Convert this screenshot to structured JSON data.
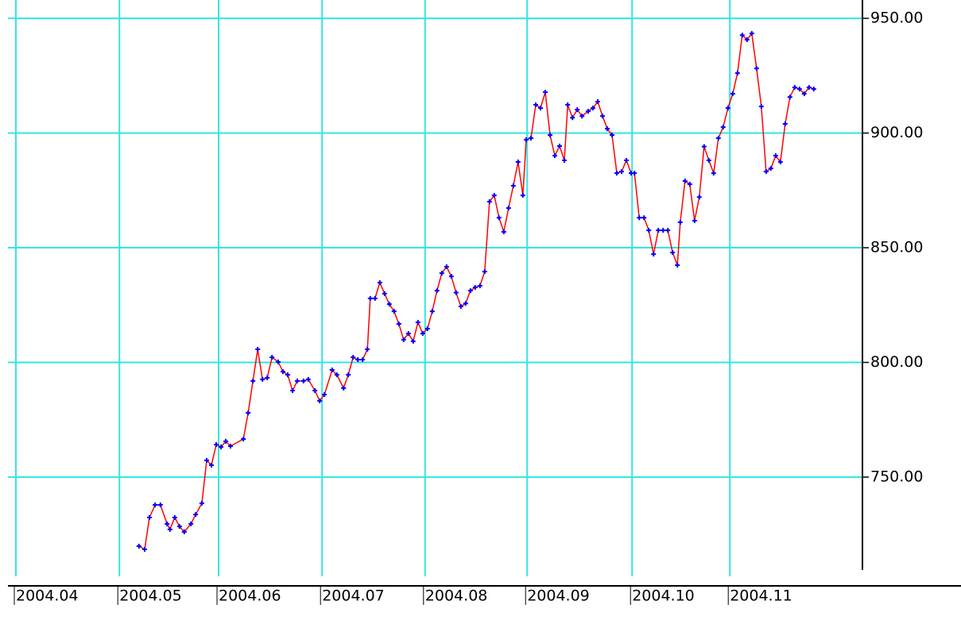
{
  "chart_data": {
    "type": "line",
    "x": [
      25.8,
      27,
      28,
      29.2,
      30.3,
      31.7,
      32.3,
      33.3,
      34.3,
      35.3,
      36.7,
      37.7,
      39,
      40,
      41,
      42,
      43,
      44,
      45,
      47.7,
      48.7,
      49.7,
      50.7,
      51.7,
      52.7,
      53.7,
      55,
      56,
      57,
      58,
      59,
      60.3,
      61.3,
      62.7,
      63.7,
      64.7,
      66.3,
      67.3,
      68.7,
      69.7,
      70.7,
      71.7,
      72.7,
      73.7,
      74.3,
      75.3,
      76.3,
      77.3,
      78.3,
      79.3,
      80.3,
      81.3,
      82.3,
      83.3,
      84.3,
      85.3,
      86.3,
      87.3,
      88.3,
      89.3,
      90.3,
      91.3,
      92.3,
      93.3,
      94.3,
      95.3,
      96.3,
      97.3,
      98.3,
      99.3,
      100.3,
      101.3,
      102.3,
      103.3,
      104.3,
      105.3,
      106.3,
      107,
      108,
      109,
      110,
      111,
      112,
      113,
      114,
      115,
      115.7,
      116.7,
      117.7,
      118.7,
      120,
      121,
      122,
      123,
      124,
      125,
      126,
      127,
      128,
      129,
      129.7,
      130.7,
      131.7,
      132.7,
      133.7,
      134.7,
      135.7,
      136.7,
      137.7,
      138.7,
      139.3,
      140.3,
      141.3,
      142.3,
      143.3,
      144.3,
      145.3,
      146.3,
      147.3,
      148.3,
      149.3,
      150.3,
      151.3,
      152.3,
      153.3,
      154.3,
      155.3,
      156.3,
      157.3,
      158.3,
      159.3,
      160.3,
      161.3,
      162.3,
      163.3,
      164.3,
      165.3,
      166.3,
      167.3
    ],
    "series": [
      {
        "color": "#ff0000",
        "marker_color": "#0000ff",
        "values": [
          719.9,
          718.5,
          732.4,
          737.9,
          737.9,
          729.6,
          727.2,
          732.4,
          728.5,
          726.1,
          729.6,
          733.7,
          738.6,
          757.3,
          755.2,
          764.2,
          763.1,
          765.6,
          763.5,
          766.6,
          778,
          791.9,
          805.7,
          792.6,
          793.3,
          802.2,
          800.2,
          796,
          794.6,
          787.7,
          791.9,
          791.9,
          792.6,
          787.7,
          783.2,
          786,
          796.7,
          794.6,
          788.8,
          794.6,
          802.2,
          801.2,
          801.2,
          805.7,
          827.9,
          827.9,
          834.8,
          830,
          825.4,
          822.3,
          816.8,
          809.9,
          812.6,
          809.2,
          817.5,
          812.6,
          814.7,
          822.3,
          831.3,
          838.9,
          841.7,
          837.5,
          830.4,
          824.4,
          825.7,
          831.3,
          832.7,
          833.4,
          839.6,
          870.1,
          872.8,
          863.1,
          856.9,
          867.3,
          877,
          887.4,
          872.8,
          897.1,
          897.8,
          912.3,
          910.9,
          917.8,
          899.1,
          890.1,
          894.3,
          888.1,
          912.3,
          906.7,
          910.2,
          907.4,
          909.5,
          910.9,
          913.7,
          907.4,
          901.9,
          899.1,
          882.5,
          883.2,
          888.1,
          882.5,
          882.5,
          863.1,
          863.1,
          857.6,
          847.2,
          857.6,
          857.6,
          857.6,
          847.9,
          842.4,
          861.1,
          879.1,
          877.7,
          861.8,
          872.1,
          894.1,
          888.1,
          882.5,
          897.8,
          902.6,
          910.9,
          917.1,
          926.1,
          942.7,
          940.7,
          943.4,
          928.2,
          911.6,
          883.2,
          884.6,
          890.1,
          887.4,
          904,
          915.7,
          919.9,
          919.2,
          917.1,
          919.9,
          919.2
        ]
      }
    ],
    "xlim": [
      0,
      177.5
    ],
    "xticks": [
      {
        "value": 0,
        "label": "2004.04"
      },
      {
        "value": 21.7,
        "label": "2004.05"
      },
      {
        "value": 42.5,
        "label": "2004.06"
      },
      {
        "value": 64.2,
        "label": "2004.07"
      },
      {
        "value": 85.8,
        "label": "2004.08"
      },
      {
        "value": 107.2,
        "label": "2004.09"
      },
      {
        "value": 129.2,
        "label": "2004.10"
      },
      {
        "value": 149.7,
        "label": "2004.11"
      }
    ],
    "ylim": [
      709.5,
      958
    ],
    "yticks": [
      {
        "value": 750,
        "label": "750.00"
      },
      {
        "value": 800,
        "label": "800.00"
      },
      {
        "value": 850,
        "label": "850.00"
      },
      {
        "value": 900,
        "label": "900.00"
      },
      {
        "value": 950,
        "label": "950.00"
      }
    ],
    "grid": true,
    "grid_color": "#33e6e6"
  }
}
